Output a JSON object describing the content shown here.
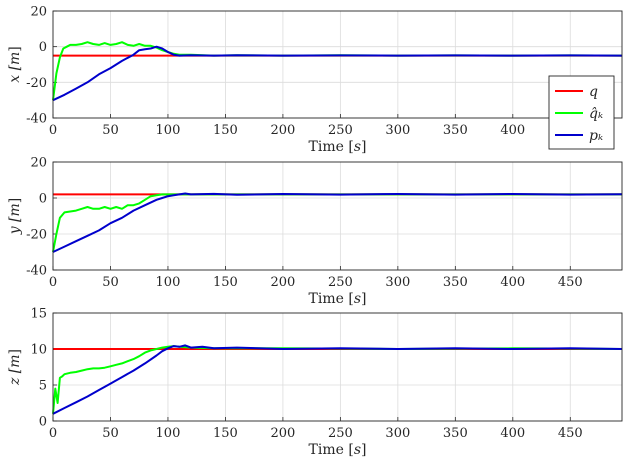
{
  "chart_data": [
    {
      "type": "line",
      "xlabel": "Time [s]",
      "ylabel": "x [m]",
      "xlim": [
        0,
        495
      ],
      "ylim": [
        -40,
        20
      ],
      "xticks": [
        "0",
        "50",
        "100",
        "150",
        "200",
        "250",
        "300",
        "350",
        "400",
        "450"
      ],
      "yticks": [
        "-40",
        "-20",
        "0",
        "20"
      ],
      "grid": true,
      "legend_position": "right",
      "series": [
        {
          "name": "q",
          "color": "#ff0000",
          "x": [
            0,
            495
          ],
          "y": [
            -5,
            -5
          ]
        },
        {
          "name": "q̂_k",
          "color": "#00ff00",
          "x": [
            0,
            3,
            6,
            9,
            12,
            15,
            20,
            25,
            30,
            35,
            40,
            45,
            50,
            55,
            60,
            65,
            70,
            75,
            80,
            85,
            90,
            95,
            100,
            105,
            110,
            120,
            140,
            160,
            200,
            250,
            300,
            350,
            400,
            450,
            495
          ],
          "y": [
            -30,
            -15,
            -6,
            -1,
            0,
            1,
            1,
            1.5,
            2.5,
            1.5,
            1,
            2,
            1,
            1.5,
            2.5,
            1,
            0.5,
            1.5,
            0.5,
            0.5,
            -0.5,
            -2,
            -3,
            -4,
            -4.5,
            -4.5,
            -5,
            -4.8,
            -5,
            -4.8,
            -5,
            -4.9,
            -5,
            -4.9,
            -5
          ]
        },
        {
          "name": "p_k",
          "color": "#0000cc",
          "x": [
            0,
            10,
            20,
            30,
            40,
            50,
            60,
            70,
            75,
            80,
            85,
            90,
            95,
            100,
            105,
            110,
            120,
            140,
            160,
            200,
            250,
            300,
            350,
            400,
            450,
            495
          ],
          "y": [
            -30,
            -27,
            -23.5,
            -20,
            -15.5,
            -12,
            -8,
            -4.5,
            -2,
            -1.5,
            -1,
            0,
            -1,
            -3,
            -4.5,
            -5,
            -4.8,
            -5,
            -4.8,
            -5,
            -4.9,
            -5,
            -4.9,
            -5,
            -4.9,
            -5
          ]
        }
      ]
    },
    {
      "type": "line",
      "xlabel": "Time [s]",
      "ylabel": "y [m]",
      "xlim": [
        0,
        495
      ],
      "ylim": [
        -40,
        20
      ],
      "xticks": [
        "0",
        "50",
        "100",
        "150",
        "200",
        "250",
        "300",
        "350",
        "400",
        "450"
      ],
      "yticks": [
        "-40",
        "-20",
        "0",
        "20"
      ],
      "grid": true,
      "series": [
        {
          "name": "q",
          "color": "#ff0000",
          "x": [
            0,
            495
          ],
          "y": [
            2,
            2
          ]
        },
        {
          "name": "q̂_k",
          "color": "#00ff00",
          "x": [
            0,
            3,
            6,
            10,
            15,
            20,
            25,
            30,
            35,
            40,
            45,
            50,
            55,
            60,
            65,
            70,
            75,
            80,
            85,
            90,
            95,
            100,
            105,
            110,
            120,
            140,
            160,
            200,
            250,
            300,
            350,
            400,
            450,
            495
          ],
          "y": [
            -30,
            -20,
            -11,
            -8,
            -7.5,
            -7,
            -6,
            -5,
            -6,
            -6,
            -5,
            -6,
            -5,
            -6,
            -4,
            -4,
            -3,
            -1,
            1,
            1.5,
            2,
            2,
            2,
            2,
            2,
            2,
            2,
            2,
            2,
            2,
            2,
            2,
            2,
            2
          ]
        },
        {
          "name": "p_k",
          "color": "#0000cc",
          "x": [
            0,
            10,
            20,
            30,
            40,
            50,
            60,
            70,
            80,
            90,
            95,
            100,
            105,
            110,
            115,
            120,
            140,
            160,
            200,
            250,
            300,
            350,
            400,
            450,
            495
          ],
          "y": [
            -30,
            -27,
            -24,
            -21,
            -18,
            -14,
            -11,
            -7,
            -4,
            -1,
            0,
            1,
            1.5,
            2,
            2.5,
            2,
            2.3,
            1.8,
            2.2,
            1.9,
            2.2,
            1.9,
            2.2,
            1.9,
            2.1
          ]
        }
      ]
    },
    {
      "type": "line",
      "xlabel": "Time [s]",
      "ylabel": "z [m]",
      "xlim": [
        0,
        495
      ],
      "ylim": [
        0,
        15
      ],
      "xticks": [
        "0",
        "50",
        "100",
        "150",
        "200",
        "250",
        "300",
        "350",
        "400",
        "450"
      ],
      "yticks": [
        "0",
        "5",
        "10",
        "15"
      ],
      "grid": true,
      "series": [
        {
          "name": "q",
          "color": "#ff0000",
          "x": [
            0,
            495
          ],
          "y": [
            10,
            10
          ]
        },
        {
          "name": "q̂_k",
          "color": "#00ff00",
          "x": [
            0,
            2,
            4,
            6,
            8,
            10,
            15,
            20,
            25,
            30,
            35,
            40,
            45,
            50,
            55,
            60,
            65,
            70,
            75,
            80,
            85,
            90,
            95,
            100,
            105,
            110,
            120,
            140,
            200,
            300,
            400,
            495
          ],
          "y": [
            1,
            4.5,
            2.5,
            6,
            6.2,
            6.5,
            6.7,
            6.8,
            7,
            7.2,
            7.3,
            7.3,
            7.4,
            7.6,
            7.8,
            8,
            8.3,
            8.6,
            9,
            9.5,
            9.8,
            10,
            10.2,
            10.3,
            10.4,
            10.3,
            10.2,
            10.1,
            10.1,
            10,
            10.1,
            10
          ]
        },
        {
          "name": "p_k",
          "color": "#0000cc",
          "x": [
            0,
            10,
            20,
            30,
            40,
            50,
            60,
            70,
            80,
            90,
            95,
            100,
            105,
            110,
            115,
            120,
            130,
            140,
            160,
            200,
            250,
            300,
            350,
            400,
            450,
            495
          ],
          "y": [
            1,
            1.8,
            2.6,
            3.4,
            4.3,
            5.2,
            6.1,
            7,
            8,
            9.1,
            9.7,
            10.1,
            10.4,
            10.3,
            10.5,
            10.2,
            10.3,
            10.1,
            10.2,
            10,
            10.1,
            10,
            10.1,
            10,
            10.1,
            10
          ]
        }
      ]
    }
  ],
  "legend": {
    "entries": [
      {
        "label": "q",
        "color": "#ff0000"
      },
      {
        "label": "q̂ₖ",
        "color": "#00ff00"
      },
      {
        "label": "pₖ",
        "color": "#0000cc"
      }
    ]
  }
}
